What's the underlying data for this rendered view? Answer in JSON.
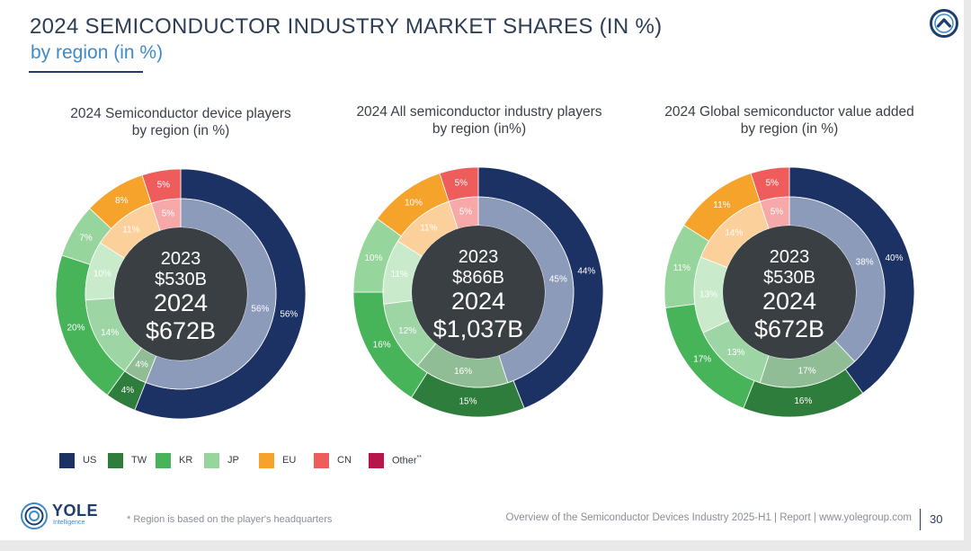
{
  "title": "2024 SEMICONDUCTOR INDUSTRY MARKET SHARES (IN %)",
  "subtitle": "by region (in %)",
  "colors": {
    "US": "#1c3164",
    "US_inner": "#8d9bbb",
    "TW": "#2e7d3d",
    "TW_inner": "#91bd96",
    "KR": "#48b45a",
    "KR_inner": "#9ed5a5",
    "JP": "#96d59c",
    "JP_inner": "#c9ebcb",
    "EU": "#f6a32c",
    "EU_inner": "#fbd09a",
    "CN": "#ee5c5c",
    "CN_inner": "#f7a9a9",
    "Other": "#b8154a",
    "center": "#3a3f44"
  },
  "legend": [
    {
      "key": "US",
      "label": "US"
    },
    {
      "key": "TW",
      "label": "TW"
    },
    {
      "key": "KR",
      "label": "KR"
    },
    {
      "key": "JP",
      "label": "JP"
    },
    {
      "key": "EU",
      "label": "EU"
    },
    {
      "key": "CN",
      "label": "CN"
    },
    {
      "key": "Other",
      "label": "Other",
      "sup": "**"
    }
  ],
  "chart_data": [
    {
      "type": "pie",
      "title_line1": "2024 Semiconductor device players",
      "title_line2": "by region (in %)",
      "center": {
        "year_prev": "2023",
        "value_prev": "$530B",
        "year": "2024",
        "value": "$672B"
      },
      "order": [
        "US",
        "TW",
        "KR",
        "JP",
        "EU",
        "CN"
      ],
      "inner": {
        "year": "2023",
        "values": [
          56,
          4,
          14,
          10,
          11,
          5
        ],
        "labels": [
          "56%",
          "4%",
          "14%",
          "10%",
          "11%",
          "5%"
        ]
      },
      "outer": {
        "year": "2024",
        "values": [
          56,
          4,
          20,
          7,
          8,
          5
        ],
        "labels": [
          "56%",
          "4%",
          "20%",
          "7%",
          "8%",
          "5%"
        ]
      }
    },
    {
      "type": "pie",
      "title_line1": "2024 All semiconductor industry players",
      "title_line2": "by region (in%)",
      "center": {
        "year_prev": "2023",
        "value_prev": "$866B",
        "year": "2024",
        "value": "$1,037B"
      },
      "order": [
        "US",
        "TW",
        "KR",
        "JP",
        "EU",
        "CN"
      ],
      "inner": {
        "year": "2023",
        "values": [
          45,
          16,
          12,
          11,
          11,
          5
        ],
        "labels": [
          "45%",
          "16%",
          "12%",
          "11%",
          "11%",
          "5%"
        ]
      },
      "outer": {
        "year": "2024",
        "values": [
          44,
          15,
          16,
          10,
          10,
          5
        ],
        "labels": [
          "44%",
          "15%",
          "16%",
          "10%",
          "10%",
          "5%"
        ]
      }
    },
    {
      "type": "pie",
      "title_line1": "2024 Global semiconductor value added",
      "title_line2": "by region (in %)",
      "center": {
        "year_prev": "2023",
        "value_prev": "$530B",
        "year": "2024",
        "value": "$672B"
      },
      "order": [
        "US",
        "TW",
        "KR",
        "JP",
        "EU",
        "CN"
      ],
      "inner": {
        "year": "2023",
        "values": [
          38,
          17,
          13,
          13,
          14,
          5
        ],
        "labels": [
          "38%",
          "17%",
          "13%",
          "13%",
          "14%",
          "5%"
        ]
      },
      "outer": {
        "year": "2024",
        "values": [
          40,
          16,
          17,
          11,
          11,
          5
        ],
        "labels": [
          "40%",
          "16%",
          "17%",
          "11%",
          "11%",
          "5%"
        ]
      }
    }
  ],
  "footer": {
    "logo": "YOLE",
    "logo_sub": "Intelligence",
    "footnote": "* Region is based on the player's headquarters",
    "source": "Overview of the Semiconductor Devices Industry 2025-H1 | Report | www.yolegroup.com",
    "page": "30"
  }
}
